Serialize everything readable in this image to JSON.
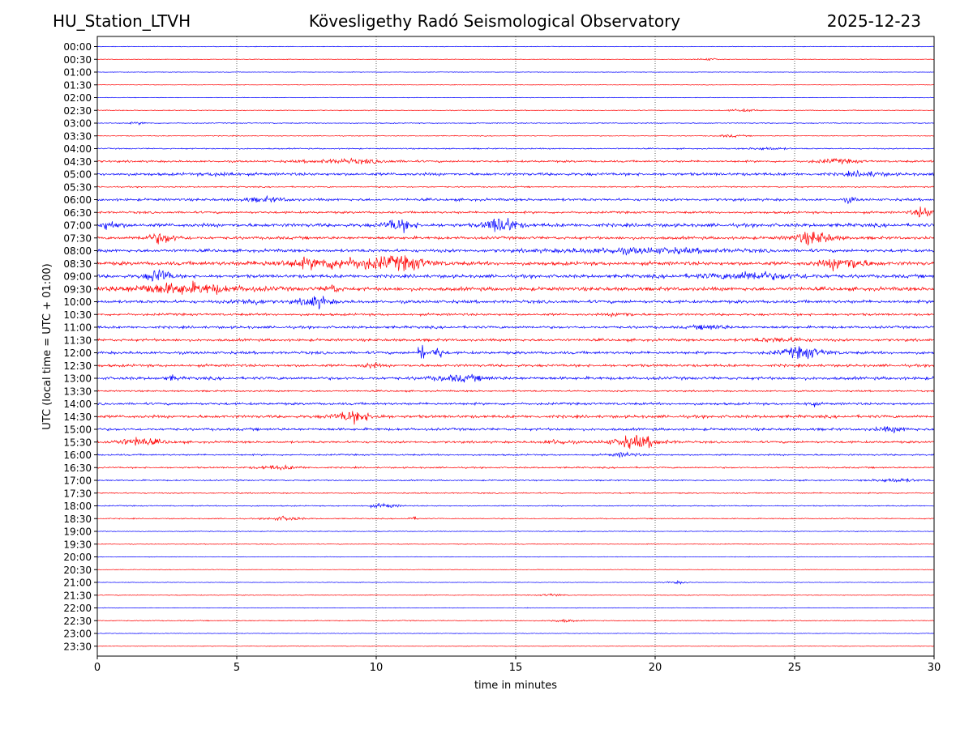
{
  "header": {
    "station": "HU_Station_LTVH",
    "observatory": "Kövesligethy Radó Seismological Observatory",
    "date": "2025-12-23"
  },
  "chart_data": {
    "type": "line",
    "title": "Kövesligethy Radó Seismological Observatory",
    "xlabel": "time in minutes",
    "ylabel": "UTC (local time = UTC + 01:00)",
    "xlim": [
      0,
      30
    ],
    "x_ticks": [
      0,
      5,
      10,
      15,
      20,
      25,
      30
    ],
    "x_tick_labels": [
      "0",
      "5",
      "10",
      "15",
      "20",
      "25",
      "30"
    ],
    "grid": "vertical dotted at 5-minute ticks",
    "colors": {
      "even_trace": "#0000ff",
      "odd_trace": "#ff0000",
      "axis": "#000000"
    },
    "rows": [
      "00:00",
      "00:30",
      "01:00",
      "01:30",
      "02:00",
      "02:30",
      "03:00",
      "03:30",
      "04:00",
      "04:30",
      "05:00",
      "05:30",
      "06:00",
      "06:30",
      "07:00",
      "07:30",
      "08:00",
      "08:30",
      "09:00",
      "09:30",
      "10:00",
      "10:30",
      "11:00",
      "11:30",
      "12:00",
      "12:30",
      "13:00",
      "13:30",
      "14:00",
      "14:30",
      "15:00",
      "15:30",
      "16:00",
      "16:30",
      "17:00",
      "17:30",
      "18:00",
      "18:30",
      "19:00",
      "19:30",
      "20:00",
      "20:30",
      "21:00",
      "21:30",
      "22:00",
      "22:30",
      "23:00",
      "23:30"
    ],
    "noise_level": [
      0.6,
      0.6,
      0.5,
      0.5,
      0.6,
      0.8,
      0.9,
      0.8,
      1.2,
      2.0,
      2.8,
      1.3,
      2.5,
      2.2,
      3.4,
      2.8,
      3.0,
      3.6,
      3.3,
      3.6,
      3.0,
      2.3,
      2.5,
      2.5,
      2.7,
      2.6,
      2.9,
      1.6,
      2.3,
      2.8,
      2.5,
      2.2,
      1.6,
      1.5,
      1.3,
      1.2,
      1.1,
      1.0,
      0.8,
      0.8,
      0.6,
      0.6,
      0.6,
      0.8,
      0.6,
      0.9,
      0.6,
      0.6
    ],
    "events": [
      {
        "row": "00:30",
        "minute": 21.9,
        "amp": 2.2,
        "width": 0.4
      },
      {
        "row": "02:30",
        "minute": 23.2,
        "amp": 2.5,
        "width": 0.5
      },
      {
        "row": "03:00",
        "minute": 1.5,
        "amp": 2.0,
        "width": 0.3
      },
      {
        "row": "03:30",
        "minute": 22.7,
        "amp": 2.2,
        "width": 0.5
      },
      {
        "row": "04:00",
        "minute": 24.0,
        "amp": 2.5,
        "width": 0.6
      },
      {
        "row": "04:30",
        "minute": 9.0,
        "amp": 3.5,
        "width": 1.5
      },
      {
        "row": "04:30",
        "minute": 26.5,
        "amp": 3.5,
        "width": 0.8
      },
      {
        "row": "05:00",
        "minute": 27.5,
        "amp": 4.0,
        "width": 0.7
      },
      {
        "row": "05:00",
        "minute": 4.5,
        "amp": 3.0,
        "width": 0.5
      },
      {
        "row": "06:00",
        "minute": 6.0,
        "amp": 3.5,
        "width": 0.8
      },
      {
        "row": "06:00",
        "minute": 27.0,
        "amp": 5.0,
        "width": 0.2
      },
      {
        "row": "06:30",
        "minute": 29.6,
        "amp": 7.0,
        "width": 0.4
      },
      {
        "row": "07:00",
        "minute": 0.4,
        "amp": 5.0,
        "width": 0.5
      },
      {
        "row": "07:00",
        "minute": 10.8,
        "amp": 7.0,
        "width": 0.6
      },
      {
        "row": "07:00",
        "minute": 14.5,
        "amp": 10.0,
        "width": 0.6
      },
      {
        "row": "07:30",
        "minute": 2.3,
        "amp": 6.0,
        "width": 0.7
      },
      {
        "row": "07:30",
        "minute": 25.7,
        "amp": 8.0,
        "width": 0.8
      },
      {
        "row": "08:00",
        "minute": 19.5,
        "amp": 4.5,
        "width": 3.0
      },
      {
        "row": "08:30",
        "minute": 8.5,
        "amp": 6.0,
        "width": 2.5
      },
      {
        "row": "08:30",
        "minute": 11.0,
        "amp": 6.0,
        "width": 1.0
      },
      {
        "row": "08:30",
        "minute": 26.8,
        "amp": 7.0,
        "width": 0.9
      },
      {
        "row": "09:00",
        "minute": 2.2,
        "amp": 8.0,
        "width": 0.5
      },
      {
        "row": "09:00",
        "minute": 23.5,
        "amp": 5.0,
        "width": 2.0
      },
      {
        "row": "09:30",
        "minute": 3.0,
        "amp": 6.0,
        "width": 2.5
      },
      {
        "row": "09:30",
        "minute": 8.4,
        "amp": 5.0,
        "width": 0.3
      },
      {
        "row": "10:00",
        "minute": 7.8,
        "amp": 7.0,
        "width": 0.6
      },
      {
        "row": "10:00",
        "minute": 5.5,
        "amp": 5.0,
        "width": 0.5
      },
      {
        "row": "10:30",
        "minute": 18.8,
        "amp": 3.5,
        "width": 0.4
      },
      {
        "row": "11:00",
        "minute": 22.0,
        "amp": 4.0,
        "width": 0.6
      },
      {
        "row": "11:30",
        "minute": 24.5,
        "amp": 3.5,
        "width": 1.0
      },
      {
        "row": "12:00",
        "minute": 11.6,
        "amp": 16.0,
        "width": 0.12
      },
      {
        "row": "12:00",
        "minute": 12.2,
        "amp": 8.0,
        "width": 0.2
      },
      {
        "row": "12:00",
        "minute": 25.3,
        "amp": 7.0,
        "width": 0.9
      },
      {
        "row": "12:30",
        "minute": 9.8,
        "amp": 4.0,
        "width": 0.3
      },
      {
        "row": "13:00",
        "minute": 13.0,
        "amp": 5.0,
        "width": 1.0
      },
      {
        "row": "13:00",
        "minute": 2.7,
        "amp": 4.5,
        "width": 0.2
      },
      {
        "row": "14:00",
        "minute": 25.6,
        "amp": 4.0,
        "width": 0.2
      },
      {
        "row": "14:30",
        "minute": 9.2,
        "amp": 7.0,
        "width": 0.8
      },
      {
        "row": "15:00",
        "minute": 28.5,
        "amp": 4.0,
        "width": 0.6
      },
      {
        "row": "15:30",
        "minute": 1.5,
        "amp": 6.0,
        "width": 0.9
      },
      {
        "row": "15:30",
        "minute": 19.3,
        "amp": 8.0,
        "width": 1.0
      },
      {
        "row": "15:30",
        "minute": 16.5,
        "amp": 4.0,
        "width": 0.5
      },
      {
        "row": "16:00",
        "minute": 18.9,
        "amp": 4.0,
        "width": 0.5
      },
      {
        "row": "16:30",
        "minute": 6.5,
        "amp": 3.5,
        "width": 0.8
      },
      {
        "row": "17:00",
        "minute": 28.6,
        "amp": 3.5,
        "width": 0.8
      },
      {
        "row": "18:00",
        "minute": 10.3,
        "amp": 4.0,
        "width": 0.5
      },
      {
        "row": "18:30",
        "minute": 6.7,
        "amp": 4.0,
        "width": 0.6
      },
      {
        "row": "18:30",
        "minute": 11.3,
        "amp": 3.0,
        "width": 0.2
      },
      {
        "row": "21:00",
        "minute": 20.8,
        "amp": 2.5,
        "width": 0.4
      },
      {
        "row": "21:30",
        "minute": 16.3,
        "amp": 2.5,
        "width": 0.4
      },
      {
        "row": "22:30",
        "minute": 16.7,
        "amp": 2.5,
        "width": 0.5
      }
    ]
  }
}
